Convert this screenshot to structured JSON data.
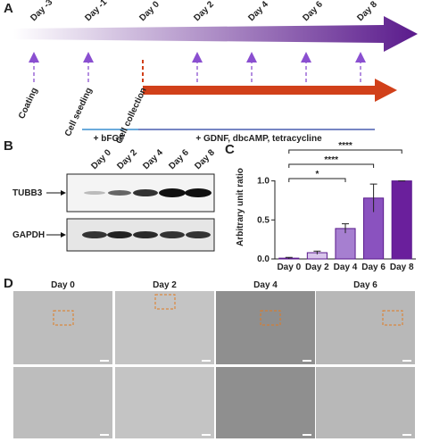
{
  "panel_labels": [
    "A",
    "B",
    "C",
    "D"
  ],
  "timeline": {
    "days": [
      "Day -3",
      "Day -1",
      "Day 0",
      "Day 2",
      "Day 4",
      "Day 6",
      "Day 8"
    ],
    "events": [
      "Coating",
      "Cell seeding",
      "Cell collection"
    ],
    "treatments": [
      "+ bFGF",
      "+ GDNF, dbcAMP, tetracycline"
    ]
  },
  "blot": {
    "lanes": [
      "Day 0",
      "Day 2",
      "Day 4",
      "Day 6",
      "Day 8"
    ],
    "proteins": [
      "TUBB3",
      "GAPDH"
    ]
  },
  "chart_data": {
    "type": "bar",
    "ylabel": "Arbitrary unit ratio",
    "categories": [
      "Day 0",
      "Day 2",
      "Day 4",
      "Day 6",
      "Day 8"
    ],
    "values": [
      0.01,
      0.08,
      0.39,
      0.78,
      1.0
    ],
    "errors": [
      0.01,
      0.02,
      0.06,
      0.18,
      0.0
    ],
    "colors": [
      "#ffffff",
      "#d9c6ec",
      "#a67fd0",
      "#8a52bf",
      "#6a1f9c"
    ],
    "ylim": [
      0,
      1.35
    ],
    "yticks": [
      {
        "value": 0,
        "label": "0.0"
      },
      {
        "value": 0.5,
        "label": "0.5"
      },
      {
        "value": 1.0,
        "label": "1.0"
      }
    ],
    "significance": [
      {
        "from": "Day 0",
        "to": "Day 4",
        "label": "*"
      },
      {
        "from": "Day 0",
        "to": "Day 6",
        "label": "****"
      },
      {
        "from": "Day 0",
        "to": "Day 8",
        "label": "****"
      }
    ]
  },
  "micrographs": {
    "days": [
      "Day 0",
      "Day 2",
      "Day 4",
      "Day 6"
    ]
  }
}
